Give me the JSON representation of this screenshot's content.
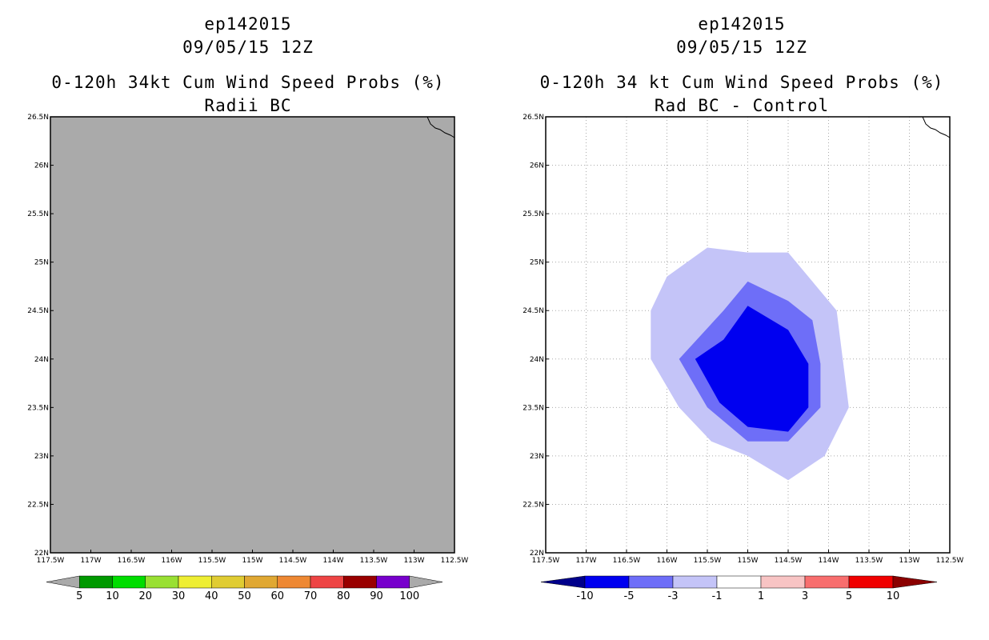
{
  "panels": [
    {
      "id": "left",
      "storm_id": "ep142015",
      "date": "09/05/15 12Z",
      "title": "0-120h 34kt Cum Wind Speed Probs (%)",
      "subtitle": "Radii BC",
      "fill_color": "#aaaaaa"
    },
    {
      "id": "right",
      "storm_id": "ep142015",
      "date": "09/05/15 12Z",
      "title": "0-120h 34 kt Cum Wind Speed Probs (%)",
      "subtitle": "Rad BC - Control"
    }
  ],
  "chart_data": [
    {
      "type": "heatmap",
      "title": "0-120h 34kt Cum Wind Speed Probs (%)",
      "subtitle": "Radii BC",
      "x_ticks": [
        "117.5W",
        "117W",
        "116.5W",
        "116W",
        "115.5W",
        "115W",
        "114.5W",
        "114W",
        "113.5W",
        "113W",
        "112.5W"
      ],
      "y_ticks": [
        "22N",
        "22.5N",
        "23N",
        "23.5N",
        "24N",
        "24.5N",
        "25N",
        "25.5N",
        "26N",
        "26.5N"
      ],
      "xlim": [
        -117.5,
        -112.5
      ],
      "ylim": [
        22,
        26.5
      ],
      "grid": false,
      "colorbar": {
        "labels": [
          "5",
          "10",
          "20",
          "30",
          "40",
          "50",
          "60",
          "70",
          "80",
          "90",
          "100"
        ],
        "colors": [
          "#009900",
          "#00dd00",
          "#99e033",
          "#eeee33",
          "#e0cc33",
          "#e0a833",
          "#ee8833",
          "#ee4444",
          "#990000",
          "#7700cc"
        ],
        "end_color": "#aaaaaa"
      }
    },
    {
      "type": "heatmap",
      "title": "0-120h 34 kt Cum Wind Speed Probs (%)",
      "subtitle": "Rad BC - Control",
      "x_ticks": [
        "117.5W",
        "117W",
        "116.5W",
        "116W",
        "115.5W",
        "115W",
        "114.5W",
        "114W",
        "113.5W",
        "113W",
        "112.5W"
      ],
      "y_ticks": [
        "22N",
        "22.5N",
        "23N",
        "23.5N",
        "24N",
        "24.5N",
        "25N",
        "25.5N",
        "26N",
        "26.5N"
      ],
      "xlim": [
        -117.5,
        -112.5
      ],
      "ylim": [
        22,
        26.5
      ],
      "grid": true,
      "contours": [
        {
          "level": "-3 to -1",
          "color": "#c4c4f8",
          "points": [
            [
              -115.5,
              25.15
            ],
            [
              -115,
              25.1
            ],
            [
              -114.5,
              25.1
            ],
            [
              -113.9,
              24.5
            ],
            [
              -113.75,
              23.5
            ],
            [
              -114.05,
              23
            ],
            [
              -114.5,
              22.75
            ],
            [
              -115,
              23
            ],
            [
              -115.45,
              23.15
            ],
            [
              -115.85,
              23.5
            ],
            [
              -116.2,
              24
            ],
            [
              -116.2,
              24.5
            ],
            [
              -116,
              24.85
            ]
          ]
        },
        {
          "level": "-5 to -3",
          "color": "#6e6ef8",
          "points": [
            [
              -115.3,
              24.5
            ],
            [
              -115,
              24.8
            ],
            [
              -114.5,
              24.6
            ],
            [
              -114.2,
              24.4
            ],
            [
              -114.1,
              23.95
            ],
            [
              -114.1,
              23.5
            ],
            [
              -114.5,
              23.15
            ],
            [
              -115,
              23.15
            ],
            [
              -115.5,
              23.5
            ],
            [
              -115.85,
              24
            ]
          ]
        },
        {
          "level": "-10 to -5",
          "color": "#0000f0",
          "points": [
            [
              -115.3,
              24.2
            ],
            [
              -115,
              24.55
            ],
            [
              -114.5,
              24.3
            ],
            [
              -114.25,
              23.95
            ],
            [
              -114.25,
              23.5
            ],
            [
              -114.5,
              23.25
            ],
            [
              -115,
              23.3
            ],
            [
              -115.35,
              23.55
            ],
            [
              -115.65,
              24
            ]
          ]
        }
      ],
      "colorbar": {
        "labels": [
          "-10",
          "-5",
          "-3",
          "-1",
          "1",
          "3",
          "5",
          "10"
        ],
        "colors": [
          "#0000f0",
          "#6e6ef8",
          "#c4c4f8",
          "#ffffff",
          "#f8c4c4",
          "#f86e6e",
          "#f00000"
        ],
        "left_end_color": "#00008b",
        "right_end_color": "#8b0000"
      }
    }
  ]
}
